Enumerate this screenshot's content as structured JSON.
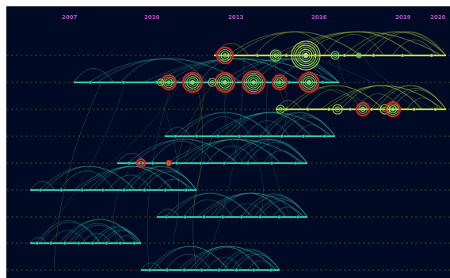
{
  "years": [
    "2007",
    "2010",
    "2013",
    "2016",
    "2019",
    "2020"
  ],
  "colors": {
    "background": "#000a24",
    "year_label": "#c44bd0",
    "guide_line": "#9aa800",
    "cluster_line": "#2fc8a8",
    "yellow_line": "#c8dc3c",
    "burst_red": "#e0202a",
    "node_green": "#8ad86a",
    "node_yellow": "#c8e060"
  },
  "clusters": [
    {
      "id": "cluster-1",
      "color": "yellow"
    },
    {
      "id": "cluster-2",
      "color": "teal"
    },
    {
      "id": "cluster-3",
      "color": "yellow"
    },
    {
      "id": "cluster-4",
      "color": "teal"
    },
    {
      "id": "cluster-5",
      "color": "teal"
    },
    {
      "id": "cluster-6",
      "color": "teal"
    },
    {
      "id": "cluster-7",
      "color": "teal"
    },
    {
      "id": "cluster-8",
      "color": "teal"
    },
    {
      "id": "cluster-9",
      "color": "teal"
    }
  ]
}
